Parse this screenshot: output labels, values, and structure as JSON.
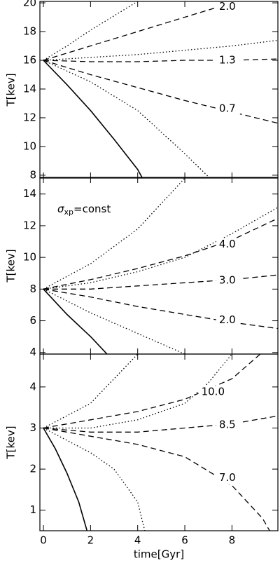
{
  "chart_data": [
    {
      "type": "line",
      "ylabel": "T[kev]",
      "color": "#000000",
      "xlim": [
        -0.15,
        9.95
      ],
      "ylim": [
        7.8,
        20.1
      ],
      "xticks": [
        0,
        2,
        4,
        6,
        8
      ],
      "yticks": [
        8,
        10,
        12,
        14,
        16,
        18,
        20
      ],
      "xtick_labels": false,
      "series": [
        {
          "style": "solid",
          "x": [
            0,
            1,
            2,
            3,
            4,
            4.2
          ],
          "values": [
            16,
            14.3,
            12.5,
            10.5,
            8.4,
            7.8
          ]
        },
        {
          "style": "dotted",
          "x": [
            0,
            2,
            4,
            6,
            7
          ],
          "values": [
            16,
            14.5,
            12.5,
            9.5,
            7.9
          ]
        },
        {
          "style": "dotted",
          "x": [
            0,
            1,
            2,
            3,
            4
          ],
          "values": [
            16,
            17,
            18.1,
            19.1,
            20.1
          ]
        },
        {
          "style": "dotted",
          "x": [
            0,
            2,
            4,
            6,
            8,
            10
          ],
          "values": [
            16,
            16.2,
            16.4,
            16.7,
            17,
            17.4
          ]
        },
        {
          "style": "dashed",
          "label": "2.0",
          "x": [
            0,
            2,
            4,
            6,
            8
          ],
          "values": [
            16,
            17,
            18,
            19,
            20
          ]
        },
        {
          "style": "dashed",
          "label": "1.3",
          "x": [
            0,
            2,
            4,
            6,
            8,
            10
          ],
          "values": [
            16,
            15.9,
            15.9,
            16,
            16,
            16.1
          ]
        },
        {
          "style": "dashed",
          "label": "0.7",
          "x": [
            0,
            2,
            4,
            6,
            8,
            10
          ],
          "values": [
            16,
            15,
            14.1,
            13.2,
            12.4,
            11.6
          ]
        }
      ]
    },
    {
      "type": "line",
      "ylabel": "T[kev]",
      "color": "#000000",
      "xlim": [
        -0.15,
        9.95
      ],
      "ylim": [
        3.9,
        15.05
      ],
      "xticks": [
        0,
        2,
        4,
        6,
        8
      ],
      "yticks": [
        4,
        6,
        8,
        10,
        12,
        14
      ],
      "xtick_labels": false,
      "annotation": {
        "symbol": "σ",
        "subscript": "xp",
        "text": "=const"
      },
      "series": [
        {
          "style": "solid",
          "x": [
            0,
            1,
            2,
            2.7
          ],
          "values": [
            8,
            6.4,
            5,
            3.9
          ]
        },
        {
          "style": "dotted",
          "x": [
            0,
            2,
            4,
            6
          ],
          "values": [
            8,
            6.5,
            5.2,
            3.9
          ]
        },
        {
          "style": "dotted",
          "x": [
            0,
            2,
            4,
            6
          ],
          "values": [
            8,
            9.6,
            11.8,
            15
          ]
        },
        {
          "style": "dotted",
          "x": [
            0,
            2,
            4,
            6,
            8,
            10
          ],
          "values": [
            8,
            8.4,
            9.1,
            10,
            11.5,
            13.2
          ]
        },
        {
          "style": "dashed",
          "label": "4.0",
          "x": [
            0,
            2,
            4,
            6,
            8,
            10
          ],
          "values": [
            8,
            8.6,
            9.3,
            10.1,
            11.1,
            12.5
          ]
        },
        {
          "style": "dashed",
          "label": "3.0",
          "x": [
            0,
            2,
            4,
            6,
            8,
            10
          ],
          "values": [
            8,
            8,
            8.2,
            8.4,
            8.6,
            8.9
          ]
        },
        {
          "style": "dashed",
          "label": "2.0",
          "x": [
            0,
            2,
            4,
            6,
            8,
            10
          ],
          "values": [
            8,
            7.5,
            6.9,
            6.4,
            5.9,
            5.5
          ]
        }
      ]
    },
    {
      "type": "line",
      "ylabel": "T[kev]",
      "xlabel": "time[Gyr]",
      "color": "#000000",
      "xlim": [
        -0.15,
        9.95
      ],
      "ylim": [
        0.5,
        4.8
      ],
      "xticks": [
        0,
        2,
        4,
        6,
        8
      ],
      "yticks": [
        1,
        2,
        3,
        4
      ],
      "xtick_labels": true,
      "series": [
        {
          "style": "solid",
          "x": [
            0,
            0.5,
            1,
            1.5,
            1.85
          ],
          "values": [
            3,
            2.5,
            1.9,
            1.2,
            0.5
          ]
        },
        {
          "style": "dotted",
          "x": [
            0,
            1,
            2,
            3,
            4,
            4.3
          ],
          "values": [
            3,
            2.7,
            2.4,
            2,
            1.2,
            0.5
          ]
        },
        {
          "style": "dotted",
          "x": [
            0,
            2,
            3,
            4
          ],
          "values": [
            3,
            3.6,
            4.2,
            4.8
          ]
        },
        {
          "style": "dotted",
          "x": [
            0,
            2,
            4,
            6,
            7,
            8
          ],
          "values": [
            3,
            3,
            3.2,
            3.6,
            4.1,
            4.8
          ]
        },
        {
          "style": "dashed",
          "label": "10.0",
          "x": [
            0,
            2,
            4,
            6,
            8,
            9.2
          ],
          "values": [
            3,
            3.2,
            3.4,
            3.7,
            4.2,
            4.8
          ]
        },
        {
          "style": "dashed",
          "label": "8.5",
          "x": [
            0,
            2,
            4,
            6,
            8,
            10
          ],
          "values": [
            3,
            2.9,
            2.9,
            3,
            3.1,
            3.3
          ]
        },
        {
          "style": "dashed",
          "label": "7.0",
          "x": [
            0,
            2,
            4,
            6,
            8,
            9.3,
            9.6
          ],
          "values": [
            3,
            2.8,
            2.6,
            2.3,
            1.6,
            0.8,
            0.5
          ]
        }
      ]
    }
  ]
}
